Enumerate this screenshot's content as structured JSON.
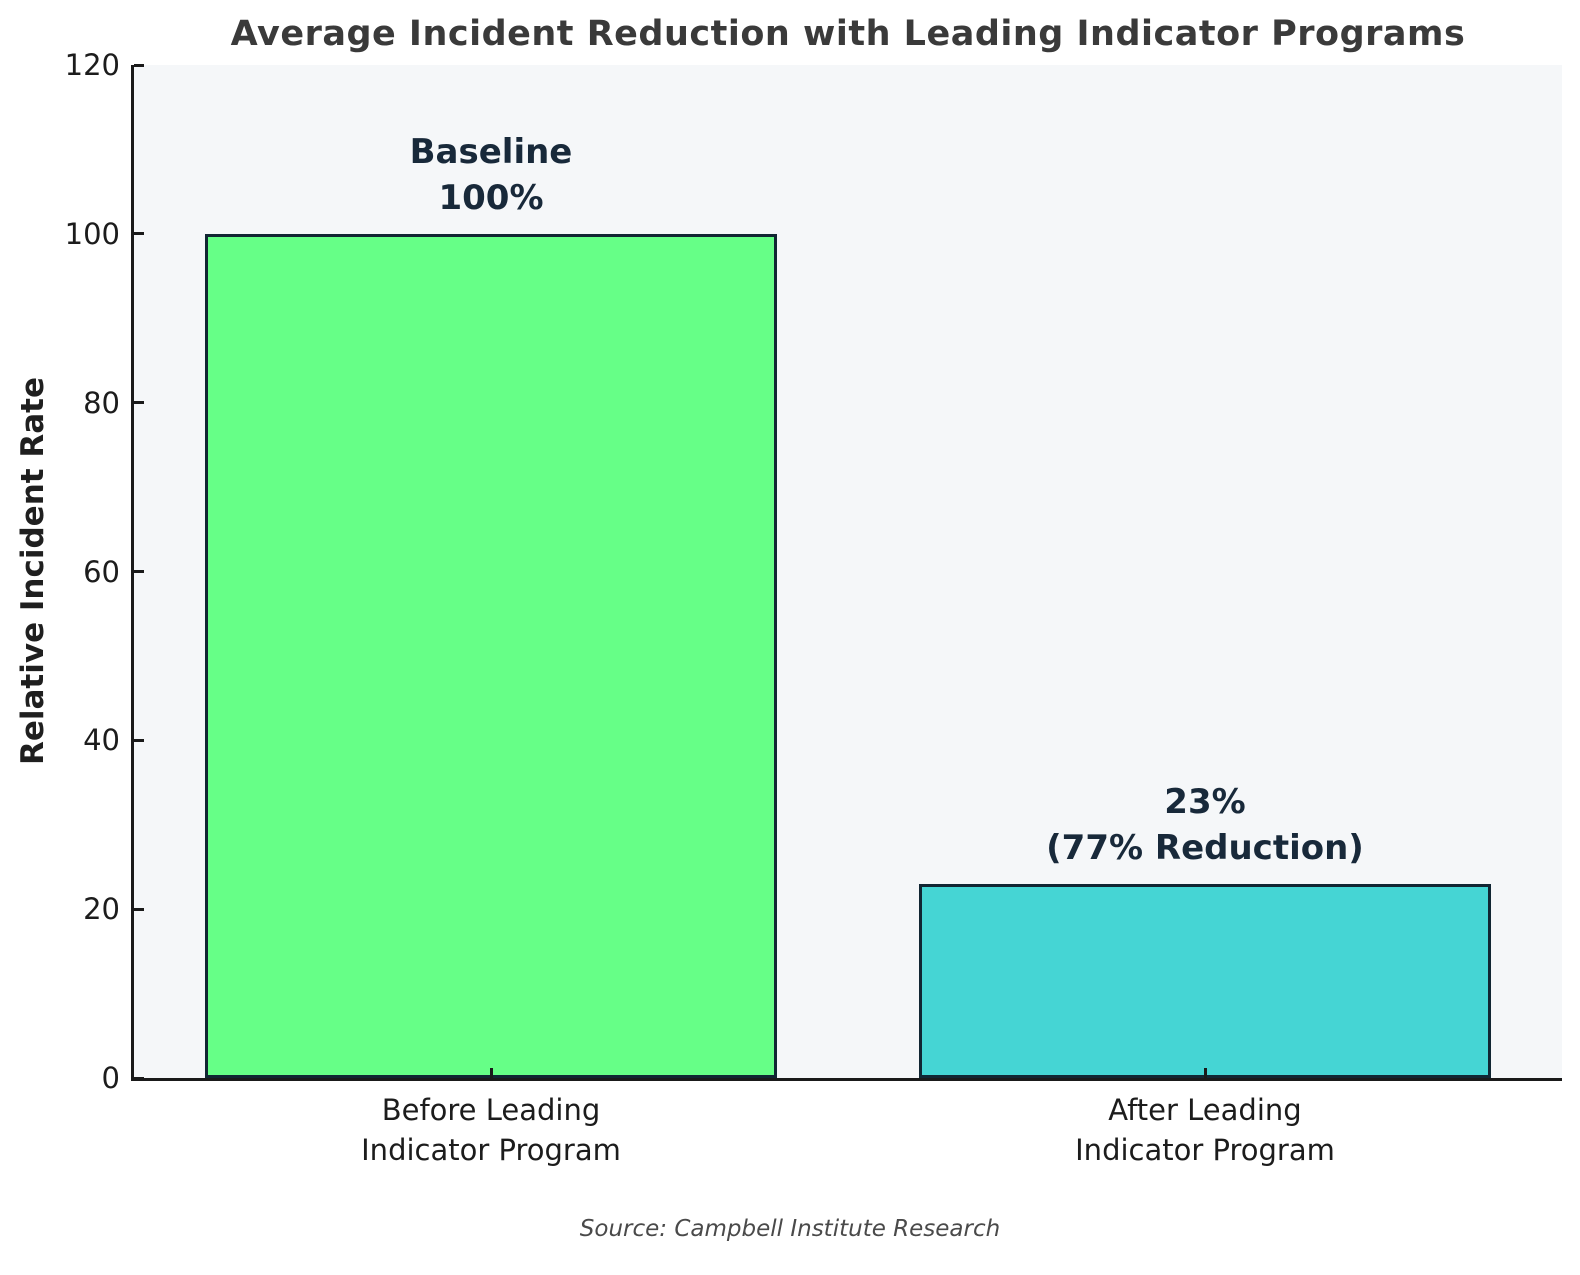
{
  "chart_data": {
    "type": "bar",
    "title": "Average Incident Reduction with Leading Indicator Programs",
    "categories": [
      "Before Leading\nIndicator Program",
      "After Leading\nIndicator Program"
    ],
    "values": [
      100,
      23
    ],
    "bar_labels": [
      "Baseline\n100%",
      "23%\n(77% Reduction)"
    ],
    "bar_colors": [
      "#66ff87",
      "#45d5d4"
    ],
    "bar_edge_color": "#112633",
    "xlabel": "",
    "ylabel": "Relative Incident Rate",
    "ylim": [
      0,
      120
    ],
    "yticks": [
      0,
      20,
      40,
      60,
      80,
      100,
      120
    ],
    "grid": false,
    "legend_position": "none",
    "plot_background": "#f5f7f9",
    "title_color": "#3a3a3a",
    "annotation_color": "#18293a",
    "source": "Source: Campbell Institute Research"
  }
}
